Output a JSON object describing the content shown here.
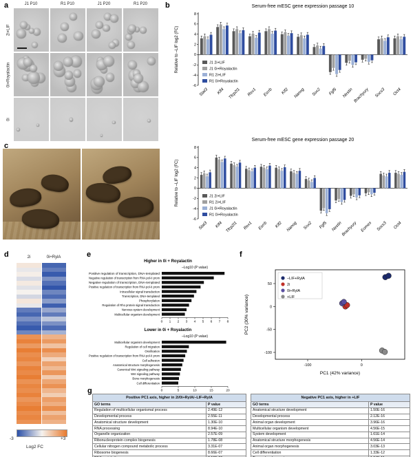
{
  "labels": {
    "a": "a",
    "b": "b",
    "c": "c",
    "d": "d",
    "e": "e",
    "f": "f",
    "g": "g"
  },
  "panel_a": {
    "col_headers": [
      "J1 P10",
      "R1 P10",
      "J1 P20",
      "R1 P20"
    ],
    "row_labels": [
      "2i+LIF",
      "0i+Royalactin",
      "0i"
    ],
    "colony_counts": [
      [
        6,
        5,
        7,
        6
      ],
      [
        9,
        8,
        10,
        9
      ],
      [
        2,
        1,
        2,
        1
      ]
    ]
  },
  "panel_d": {
    "col_labels": [
      "2i",
      "0i+RylA"
    ],
    "colorbar": {
      "min_label": "-3",
      "max_label": "+3",
      "title": "Log2 FC"
    }
  },
  "panel_g": {
    "tables": [
      {
        "title": "Positive PC1 axis, higher in 2i/0i+RylA/–LIF+RylA",
        "columns": [
          "GO terms",
          "P value"
        ],
        "rows": [
          [
            "Regulation of multicellular organismal process",
            "2.49E-12"
          ],
          [
            "Developmental process",
            "2.55E-11"
          ],
          [
            "Anatomical structure development",
            "1.30E-10"
          ],
          [
            "RNA processing",
            "8.94E-10"
          ],
          [
            "Organelle organization",
            "2.57E-09"
          ],
          [
            "Ribonucleoprotein complex biogenesis",
            "1.78E-08"
          ],
          [
            "Cellular nitrogen compound metabolic process",
            "3.31E-07"
          ],
          [
            "Ribosome biogenesis",
            "8.66E-07"
          ],
          [
            "DNA metabolic process",
            "8.19E-06"
          ],
          [
            "Nucleobase-containing compound metabolic process",
            "8.66E-06"
          ]
        ]
      },
      {
        "title": "Negative PC1 axis, higher in +LIF",
        "columns": [
          "GO terms",
          "P value"
        ],
        "rows": [
          [
            "Anatomical structure development",
            "1.50E-16"
          ],
          [
            "Developmental process",
            "2.12E-16"
          ],
          [
            "Animal organ development",
            "3.96E-16"
          ],
          [
            "Multicellular organism development",
            "4.56E-15"
          ],
          [
            "System development",
            "1.61E-14"
          ],
          [
            "Anatomical structure morphogenesis",
            "4.56E-14"
          ],
          [
            "Animal organ morphogenesis",
            "3.03E-13"
          ],
          [
            "Cell differentiation",
            "1.33E-12"
          ],
          [
            "Tissue development",
            "1.34E-11"
          ],
          [
            "Cellular developmental process",
            "1.43E-11"
          ]
        ]
      }
    ]
  },
  "chart_data": [
    {
      "id": "passage10",
      "type": "bar",
      "title": "Serum-free mESC gene expression passage 10",
      "ylabel": "Relative to –LIF log2 (FC)",
      "ylim": [
        -6,
        8
      ],
      "yticks": [
        8,
        6,
        4,
        2,
        0,
        -2,
        -4,
        -6
      ],
      "categories": [
        "Stat3",
        "Klf4",
        "Tfcp2l1",
        "Rex1",
        "Esrrb",
        "Klf2",
        "Nanog",
        "Sox2",
        "Fgf5",
        "Nestin",
        "Brachyury",
        "Socs3",
        "Oct4"
      ],
      "series": [
        {
          "name": "J1 2i+LIF",
          "color": "#595959",
          "values": [
            3.2,
            5.4,
            4.6,
            3.6,
            4.6,
            4.0,
            3.5,
            1.5,
            -3.4,
            -1.6,
            -1.0,
            3.0,
            3.2
          ]
        },
        {
          "name": "J1 0i+Royalactin",
          "color": "#a0a0a0",
          "values": [
            3.6,
            5.9,
            5.0,
            4.1,
            5.0,
            4.4,
            3.8,
            1.8,
            -2.6,
            -1.2,
            -0.8,
            3.2,
            3.6
          ]
        },
        {
          "name": "R1 2i+LIF",
          "color": "#9bb0d6",
          "values": [
            3.0,
            5.0,
            4.2,
            3.3,
            4.1,
            3.7,
            3.2,
            1.2,
            -3.8,
            -2.0,
            -1.4,
            2.7,
            3.0
          ]
        },
        {
          "name": "R1 0i+Royalactin",
          "color": "#2f4da0",
          "values": [
            3.9,
            5.7,
            4.8,
            4.3,
            4.7,
            4.2,
            3.9,
            1.7,
            -3.0,
            -1.5,
            -1.1,
            3.4,
            3.5
          ]
        }
      ],
      "error": 0.45,
      "legend_position": "left-middle"
    },
    {
      "id": "passage20",
      "type": "bar",
      "title": "Serum-free mESC gene expression passage 20",
      "ylabel": "Relative to –LIF log2 (FC)",
      "ylim": [
        -6,
        8
      ],
      "yticks": [
        8,
        6,
        4,
        2,
        0,
        -2,
        -4,
        -6
      ],
      "categories": [
        "Stat3",
        "Klf4",
        "Tfcp2l1",
        "Rex1",
        "Esrrb",
        "Klf2",
        "Nanog",
        "Sox2",
        "Fgf5",
        "Nestin",
        "Brachyury",
        "Eomes",
        "Socs3",
        "Oct4"
      ],
      "series": [
        {
          "name": "J1 2i+LIF",
          "color": "#595959",
          "values": [
            2.6,
            6.0,
            4.8,
            3.8,
            4.2,
            4.0,
            3.3,
            1.8,
            -4.4,
            -2.4,
            -1.5,
            -1.0,
            2.8,
            3.0
          ]
        },
        {
          "name": "R1 2i+LIF",
          "color": "#a0a0a0",
          "values": [
            2.9,
            5.6,
            4.5,
            3.5,
            4.0,
            3.7,
            3.0,
            1.5,
            -3.9,
            -2.1,
            -1.2,
            -0.8,
            2.5,
            2.8
          ]
        },
        {
          "name": "J1 0i+Royalactin",
          "color": "#9bb0d6",
          "values": [
            2.3,
            5.1,
            4.2,
            3.3,
            3.7,
            3.4,
            2.8,
            1.2,
            -4.9,
            -2.7,
            -1.8,
            -1.2,
            2.3,
            2.6
          ]
        },
        {
          "name": "R1 0i+Royalactin",
          "color": "#2f4da0",
          "values": [
            3.1,
            5.8,
            5.0,
            4.0,
            4.4,
            4.1,
            3.4,
            2.0,
            -4.1,
            -2.3,
            -1.4,
            -0.9,
            3.0,
            3.2
          ]
        }
      ],
      "error": 0.45,
      "legend_position": "left-middle"
    },
    {
      "id": "go_higher",
      "type": "bar",
      "orientation": "horizontal",
      "title": "Higher in 0i + Royalactin",
      "xlabel": "–Log10 (P value)",
      "xlim": [
        0,
        8
      ],
      "xticks": [
        0,
        1,
        2,
        3,
        4,
        5,
        6,
        7,
        8
      ],
      "categories": [
        "Positive regulation of transcription, DNA-templated",
        "Negative regulation of transcription from RNA pol-II prom",
        "Negative regulation of transcription, DNA-templated",
        "Positive regulation of transcription from RNA pol-II prom",
        "Intracellular signal transduction",
        "Transcription, DNA-templated",
        "Phosphorylation",
        "Regulation of Rho protein signal transduction",
        "Nervous system development",
        "Multicellular organism development"
      ],
      "values": [
        7.6,
        6.3,
        5.1,
        4.7,
        4.2,
        3.9,
        3.6,
        3.3,
        3.0,
        2.8
      ],
      "bar_color": "#111111"
    },
    {
      "id": "go_lower",
      "type": "bar",
      "orientation": "horizontal",
      "title": "Lower in 0i + Royalactin",
      "xlabel": "–Log10 (P value)",
      "xlim": [
        0,
        20
      ],
      "xticks": [
        0,
        5,
        10,
        15,
        20
      ],
      "categories": [
        "Multicellular organism development",
        "Regulation of cell migration",
        "Ossification",
        "Positive regulation of transcription from RNA pol-II prom",
        "Cell adhesion",
        "Anatomical structure morphogenesis",
        "Canonical Wnt signaling pathway",
        "Wnt signaling pathway",
        "Bone morphogenesis",
        "Cell differentiation"
      ],
      "values": [
        19.5,
        8.2,
        7.6,
        7.1,
        6.6,
        6.2,
        5.8,
        5.5,
        5.2,
        5.0
      ],
      "bar_color": "#111111"
    },
    {
      "id": "pca",
      "type": "scatter",
      "xlabel": "PC1 (42% variance)",
      "ylabel": "PC2 (30% variance)",
      "xlim": [
        -160,
        80
      ],
      "ylim": [
        -115,
        80
      ],
      "xticks": [
        -100,
        0
      ],
      "yticks": [
        50,
        0,
        -50,
        -100
      ],
      "series": [
        {
          "name": "–LIF+RylA",
          "color": "#1b2a6b",
          "points": [
            [
              44,
              64
            ],
            [
              50,
              67
            ]
          ]
        },
        {
          "name": "2i",
          "color": "#c03028",
          "points": [
            [
              -30,
              0
            ],
            [
              -27,
              3
            ]
          ]
        },
        {
          "name": "0i+RylA",
          "color": "#5a4fa0",
          "points": [
            [
              -36,
              7
            ],
            [
              -33,
              10
            ]
          ]
        },
        {
          "name": "+LIF",
          "color": "#8a8a8a",
          "points": [
            [
              38,
              -96
            ],
            [
              43,
              -99
            ]
          ]
        }
      ],
      "legend_position": "top-left"
    },
    {
      "id": "heatmap",
      "type": "heatmap",
      "columns": [
        "2i",
        "0i+RylA"
      ],
      "value_label": "Log2 FC",
      "scale": {
        "min": -3,
        "max": 3,
        "min_color": "#2b50a8",
        "mid_color": "#f5f2ee",
        "max_color": "#e87a2e"
      },
      "rows": [
        [
          0.3,
          -2.6
        ],
        [
          -0.2,
          -2.2
        ],
        [
          0.1,
          -2.8
        ],
        [
          -0.4,
          -1.8
        ],
        [
          0.2,
          -2.4
        ],
        [
          -0.3,
          -2.9
        ],
        [
          0.0,
          -2.0
        ],
        [
          -0.5,
          -2.5
        ],
        [
          0.3,
          -1.6
        ],
        [
          -0.2,
          -2.7
        ],
        [
          -2.2,
          -1.4
        ],
        [
          -2.6,
          -2.2
        ],
        [
          -1.8,
          -0.8
        ],
        [
          -2.4,
          -1.8
        ],
        [
          -2.8,
          -2.5
        ],
        [
          -2.0,
          -1.2
        ],
        [
          2.4,
          1.6
        ],
        [
          2.8,
          2.2
        ],
        [
          2.2,
          1.2
        ],
        [
          2.9,
          2.5
        ],
        [
          2.5,
          1.8
        ],
        [
          2.7,
          0.8
        ],
        [
          2.3,
          2.0
        ],
        [
          2.8,
          1.4
        ],
        [
          2.6,
          2.3
        ],
        [
          2.9,
          1.0
        ],
        [
          2.4,
          1.9
        ],
        [
          2.7,
          2.4
        ],
        [
          2.5,
          1.5
        ],
        [
          2.8,
          0.9
        ],
        [
          2.3,
          2.1
        ],
        [
          2.6,
          1.7
        ],
        [
          2.9,
          2.5
        ],
        [
          2.5,
          1.3
        ],
        [
          2.7,
          2.0
        ],
        [
          2.4,
          1.6
        ]
      ]
    }
  ]
}
